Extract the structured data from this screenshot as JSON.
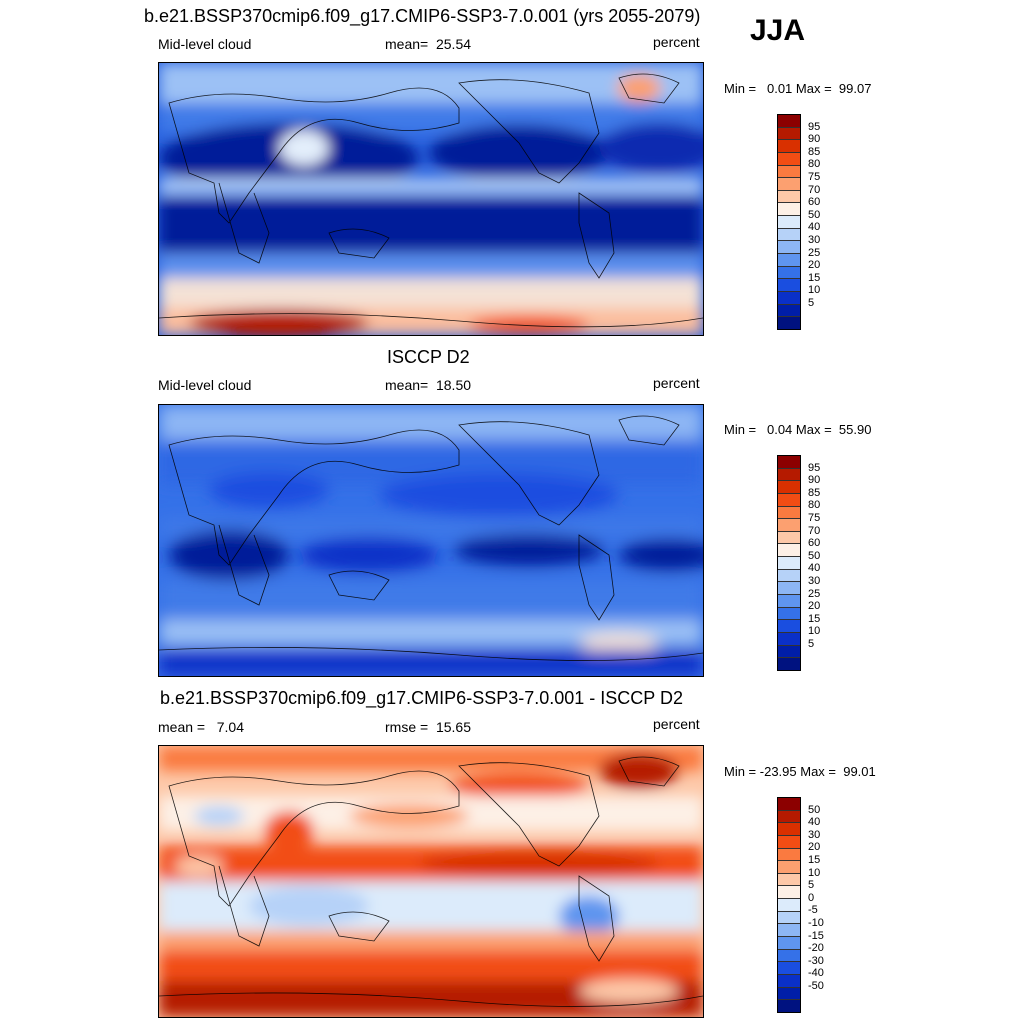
{
  "season": "JJA",
  "panels": [
    {
      "title": "b.e21.BSSP370cmip6.f09_g17.CMIP6-SSP3-7.0.001 (yrs 2055-2079)",
      "left_label": "Mid-level cloud",
      "center_label": "mean=  25.54",
      "right_label": "percent",
      "minmax": "Min =   0.01 Max =  99.07",
      "colorbar": {
        "colors": [
          "#8c0000",
          "#b51a00",
          "#d93000",
          "#f24d14",
          "#fa7a40",
          "#fca070",
          "#fdc8a8",
          "#fdf0e6",
          "#dcebfb",
          "#b6d2f8",
          "#8db6f4",
          "#5f95ef",
          "#3571e8",
          "#1a4ee0",
          "#0a30c8",
          "#001ea8",
          "#001280"
        ],
        "ticks": [
          "95",
          "90",
          "85",
          "80",
          "75",
          "70",
          "60",
          "50",
          "40",
          "30",
          "25",
          "20",
          "15",
          "10",
          "5"
        ]
      }
    },
    {
      "title": "ISCCP D2",
      "left_label": "Mid-level cloud",
      "center_label": "mean=  18.50",
      "right_label": "percent",
      "minmax": "Min =   0.04 Max =  55.90",
      "colorbar": {
        "colors": [
          "#8c0000",
          "#b51a00",
          "#d93000",
          "#f24d14",
          "#fa7a40",
          "#fca070",
          "#fdc8a8",
          "#fdf0e6",
          "#dcebfb",
          "#b6d2f8",
          "#8db6f4",
          "#5f95ef",
          "#3571e8",
          "#1a4ee0",
          "#0a30c8",
          "#001ea8",
          "#001280"
        ],
        "ticks": [
          "95",
          "90",
          "85",
          "80",
          "75",
          "70",
          "60",
          "50",
          "40",
          "30",
          "25",
          "20",
          "15",
          "10",
          "5"
        ]
      }
    },
    {
      "title": "b.e21.BSSP370cmip6.f09_g17.CMIP6-SSP3-7.0.001 - ISCCP D2",
      "left_label": "mean =   7.04",
      "center_label": "rmse =  15.65",
      "right_label": "percent",
      "minmax": "Min = -23.95 Max =  99.01",
      "colorbar": {
        "colors": [
          "#8c0000",
          "#b51a00",
          "#d93000",
          "#f24d14",
          "#fa7a40",
          "#fca070",
          "#fdc8a8",
          "#fdf0e6",
          "#dcebfb",
          "#b6d2f8",
          "#8db6f4",
          "#5f95ef",
          "#3571e8",
          "#1a4ee0",
          "#0a30c8",
          "#001ea8",
          "#001280"
        ],
        "ticks": [
          "50",
          "40",
          "30",
          "20",
          "15",
          "10",
          "5",
          "0",
          "-5",
          "-10",
          "-15",
          "-20",
          "-30",
          "-40",
          "-50"
        ]
      }
    }
  ]
}
